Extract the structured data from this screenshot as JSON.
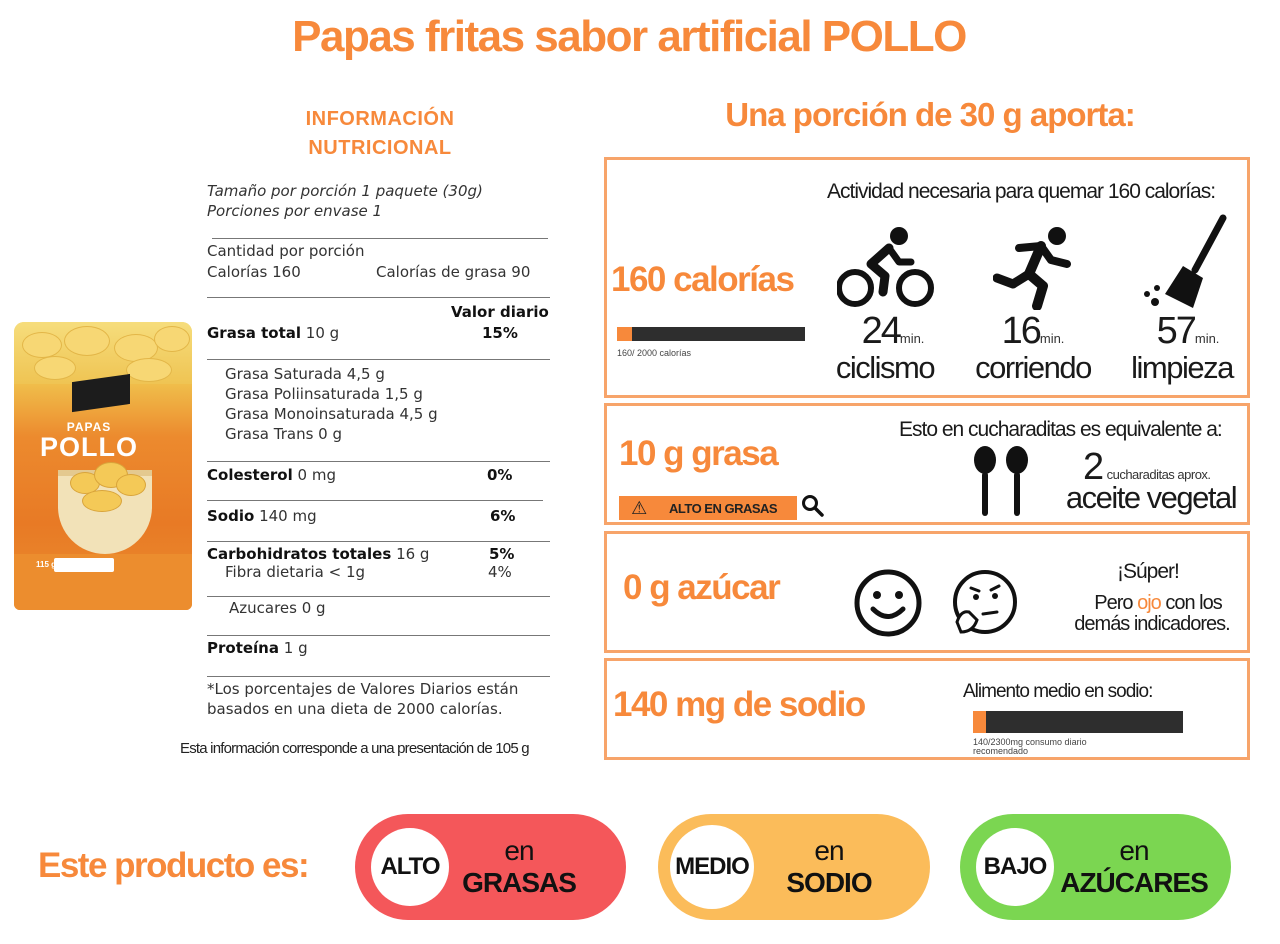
{
  "title": "Papas fritas sabor artificial POLLO",
  "info_heading": [
    "INFORMACIÓN",
    "NUTRICIONAL"
  ],
  "portion_heading": "Una porción de 30 g aporta:",
  "product": {
    "bag_text_1": "PAPAS",
    "bag_text_2": "POLLO",
    "bag_weight": "115 g"
  },
  "nutrition": {
    "serving_size": "Tamaño por porción 1 paquete (30g)",
    "servings_per_container": "Porciones por envase 1",
    "amount_per_serving": "Cantidad por porción",
    "calories": "Calorías 160",
    "calories_fat": "Calorías de grasa 90",
    "daily_value_header": "Valor diario",
    "total_fat_label": "Grasa total",
    "total_fat_value": " 10 g",
    "total_fat_dv": "15%",
    "sat_fat": "Grasa Saturada 4,5 g",
    "poly_fat": "Grasa Poliinsaturada 1,5 g",
    "mono_fat": "Grasa Monoinsaturada 4,5 g",
    "trans_fat": "Grasa Trans 0 g",
    "cholesterol_label": "Colesterol",
    "cholesterol_value": " 0 mg",
    "cholesterol_dv": "0%",
    "sodium_label": "Sodio",
    "sodium_value": " 140 mg",
    "sodium_dv": "6%",
    "carbs_label": "Carbohidratos totales",
    "carbs_value": " 16 g",
    "carbs_dv": "5%",
    "fiber": "Fibra dietaria < 1g",
    "fiber_dv": "4%",
    "sugars": "Azucares 0 g",
    "protein_label": "Proteína",
    "protein_value": " 1 g",
    "footnote_1": "*Los porcentajes de Valores Diarios están",
    "footnote_2": "basados en una dieta de 2000 calorías.",
    "presentation_note": "Esta información corresponde a una presentación de 105 g"
  },
  "calories_box": {
    "headline": "160 calorías",
    "bar_fraction": 0.08,
    "bar_caption": "160/ 2000 calorías",
    "activity_title": "Actividad necesaria para quemar 160 calorías:",
    "activities": [
      {
        "icon": "cyclist-icon",
        "minutes": "24",
        "unit": "min.",
        "label": "ciclismo"
      },
      {
        "icon": "runner-icon",
        "minutes": "16",
        "unit": "min.",
        "label": "corriendo"
      },
      {
        "icon": "broom-icon",
        "minutes": "57",
        "unit": "min.",
        "label": "limpieza"
      }
    ]
  },
  "fat_box": {
    "headline": "10 g grasa",
    "badge": "ALTO EN GRASAS",
    "equivalent_title": "Esto en cucharaditas es equivalente a:",
    "teaspoons": "2",
    "teaspoons_caption": "cucharaditas aprox.",
    "teaspoons_label": "aceite vegetal"
  },
  "sugar_box": {
    "headline": "0 g  azúcar",
    "super": "¡Súper!",
    "msg_pre": "Pero ",
    "msg_eye": "ojo",
    "msg_post": " con los",
    "msg_line2": "demás indicadores."
  },
  "sodium_box": {
    "headline": "140 mg  de sodio",
    "level_title": "Alimento medio en sodio:",
    "bar_fraction": 0.061,
    "caption_1": "140/2300mg  consumo diario",
    "caption_2": "recomendado"
  },
  "bottom": {
    "label": "Este producto es:",
    "pills": [
      {
        "level": "ALTO",
        "line1": "en",
        "line2": "GRASAS",
        "color": "#f4575a"
      },
      {
        "level": "MEDIO",
        "line1": "en",
        "line2": "SODIO",
        "color": "#fbbc5a"
      },
      {
        "level": "BAJO",
        "line1": "en",
        "line2": "AZÚCARES",
        "color": "#7bd651"
      }
    ]
  },
  "colors": {
    "accent": "#f7893b",
    "box_border": "#f7a46a",
    "bar_dark": "#2e2e2e"
  }
}
